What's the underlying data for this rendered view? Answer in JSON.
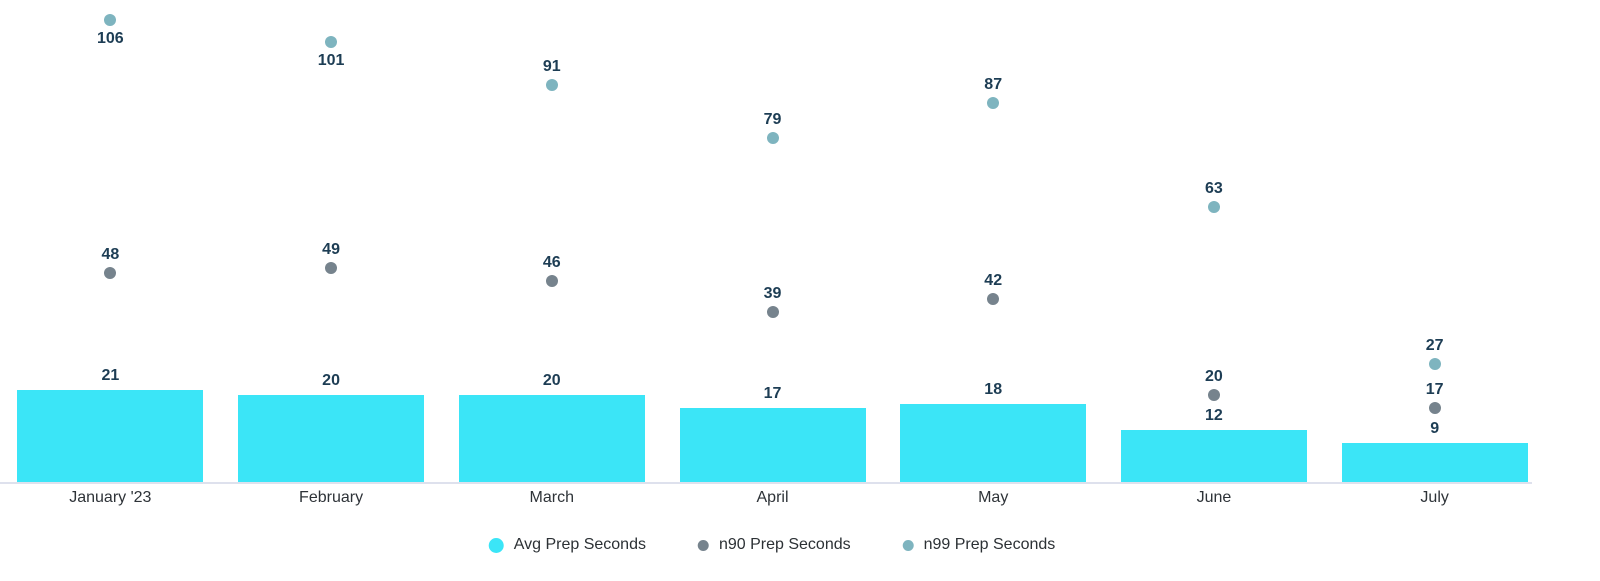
{
  "chart_data": {
    "type": "bar",
    "subtype": "bar-with-scatter-overlay",
    "categories": [
      "January '23",
      "February",
      "March",
      "April",
      "May",
      "June",
      "July"
    ],
    "series": [
      {
        "name": "Avg Prep Seconds",
        "mark": "bar",
        "color": "#3be5f7",
        "values": [
          21,
          20,
          20,
          17,
          18,
          12,
          9
        ]
      },
      {
        "name": "n90 Prep Seconds",
        "mark": "dot",
        "color": "#76838d",
        "values": [
          48,
          49,
          46,
          39,
          42,
          20,
          17
        ]
      },
      {
        "name": "n99 Prep Seconds",
        "mark": "dot",
        "color": "#7eb4bf",
        "values": [
          106,
          101,
          91,
          79,
          87,
          63,
          27
        ]
      }
    ],
    "title": "",
    "xlabel": "",
    "ylabel": "",
    "ylim": [
      0,
      111
    ],
    "grid": false,
    "data_labels": true,
    "legend_position": "bottom",
    "data_label_color": "#1d3d54",
    "axis_label_color": "#2e3338",
    "axis_line_color": "#dee1ed"
  }
}
